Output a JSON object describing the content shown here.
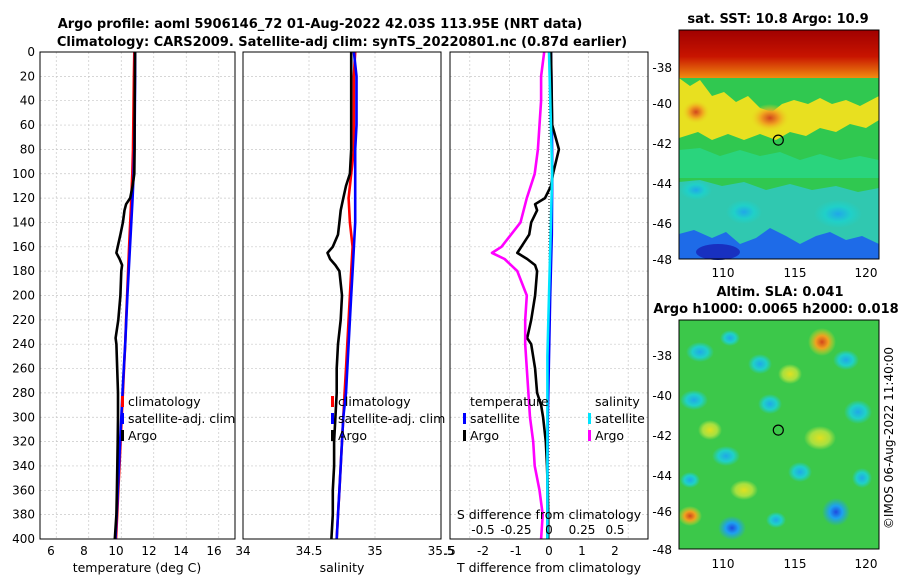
{
  "figure": {
    "title_line1": "Argo profile: aoml 5906146_72 01-Aug-2022 42.03S 113.95E (NRT data)",
    "title_line2": "Climatology: CARS2009. Satellite-adj clim: synTS_20220801.nc (0.87d earlier)",
    "credit": "©IMOS 06-Aug-2022 11:40:00"
  },
  "colors": {
    "climatology": "#ff0000",
    "satellite_clim": "#0000ff",
    "argo": "#000000",
    "salinity_satellite": "#00e5ff",
    "salinity_argo": "#ff00ff",
    "grid": "#c8c8c8"
  },
  "chart_data": [
    {
      "type": "line",
      "id": "temperature-panel",
      "xlabel": "temperature (deg C)",
      "ylabel": "",
      "xlim": [
        5,
        17
      ],
      "ylim": [
        400,
        0
      ],
      "xticks": [
        "6",
        "8",
        "10",
        "12",
        "14",
        "16"
      ],
      "yticks": [
        "0",
        "20",
        "40",
        "60",
        "80",
        "100",
        "120",
        "140",
        "160",
        "180",
        "200",
        "220",
        "240",
        "260",
        "280",
        "300",
        "320",
        "340",
        "360",
        "380",
        "400"
      ],
      "legend": [
        "climatology",
        "satellite-adj. clim",
        "Argo"
      ],
      "series": [
        {
          "name": "climatology",
          "color": "#ff0000",
          "depth": [
            0,
            20,
            40,
            60,
            80,
            100,
            120,
            140,
            160,
            180,
            200,
            220,
            240,
            260,
            280,
            300,
            320,
            340,
            360,
            380,
            400
          ],
          "values": [
            10.8,
            10.78,
            10.76,
            10.74,
            10.72,
            10.68,
            10.62,
            10.55,
            10.48,
            10.42,
            10.36,
            10.3,
            10.24,
            10.17,
            10.1,
            10.03,
            9.96,
            9.89,
            9.82,
            9.75,
            9.68
          ]
        },
        {
          "name": "satellite-adj. clim",
          "color": "#0000ff",
          "depth": [
            0,
            20,
            40,
            60,
            80,
            100,
            120,
            140,
            160,
            180,
            200,
            220,
            240,
            260,
            280,
            300,
            320,
            340,
            360,
            380,
            400
          ],
          "values": [
            10.85,
            10.85,
            10.84,
            10.83,
            10.8,
            10.76,
            10.7,
            10.62,
            10.54,
            10.46,
            10.38,
            10.31,
            10.24,
            10.16,
            10.08,
            10.0,
            9.93,
            9.86,
            9.79,
            9.72,
            9.64
          ]
        },
        {
          "name": "Argo",
          "color": "#000000",
          "depth": [
            0,
            20,
            40,
            60,
            80,
            100,
            110,
            120,
            125,
            130,
            140,
            150,
            160,
            165,
            170,
            175,
            180,
            200,
            220,
            235,
            240,
            260,
            280,
            300,
            320,
            340,
            360,
            380,
            400
          ],
          "values": [
            10.85,
            10.84,
            10.83,
            10.82,
            10.82,
            10.8,
            10.7,
            10.55,
            10.3,
            10.2,
            10.1,
            9.95,
            9.78,
            9.7,
            9.9,
            10.05,
            10.0,
            9.95,
            9.82,
            9.65,
            9.7,
            9.75,
            9.8,
            9.8,
            9.78,
            9.76,
            9.73,
            9.7,
            9.6
          ]
        }
      ]
    },
    {
      "type": "line",
      "id": "salinity-panel",
      "xlabel": "salinity",
      "xlim": [
        34,
        35.5
      ],
      "ylim": [
        400,
        0
      ],
      "xticks": [
        "34",
        "34.5",
        "35",
        "35.5"
      ],
      "legend": [
        "climatology",
        "satellite-adj. clim",
        "Argo"
      ],
      "series": [
        {
          "name": "climatology",
          "color": "#ff0000",
          "depth": [
            0,
            20,
            40,
            60,
            80,
            100,
            120,
            140,
            160,
            180,
            200,
            220,
            240,
            260,
            280,
            300,
            320,
            340,
            360,
            380,
            400
          ],
          "values": [
            34.85,
            34.84,
            34.84,
            34.84,
            34.84,
            34.82,
            34.8,
            34.81,
            34.83,
            34.82,
            34.81,
            34.8,
            34.79,
            34.78,
            34.77,
            34.76,
            34.75,
            34.74,
            34.73,
            34.72,
            34.71
          ]
        },
        {
          "name": "satellite-adj. clim",
          "color": "#0000ff",
          "depth": [
            0,
            20,
            40,
            60,
            80,
            100,
            120,
            140,
            160,
            180,
            200,
            220,
            240,
            260,
            280,
            300,
            320,
            340,
            360,
            380,
            400
          ],
          "values": [
            34.84,
            34.86,
            34.86,
            34.86,
            34.85,
            34.85,
            34.85,
            34.85,
            34.84,
            34.83,
            34.82,
            34.81,
            34.8,
            34.79,
            34.78,
            34.76,
            34.75,
            34.74,
            34.73,
            34.72,
            34.71
          ]
        },
        {
          "name": "Argo",
          "color": "#000000",
          "depth": [
            0,
            20,
            40,
            60,
            80,
            100,
            110,
            120,
            130,
            140,
            150,
            160,
            165,
            170,
            175,
            180,
            200,
            220,
            240,
            260,
            280,
            300,
            320,
            340,
            360,
            380,
            400
          ],
          "values": [
            34.82,
            34.82,
            34.82,
            34.82,
            34.82,
            34.81,
            34.78,
            34.76,
            34.74,
            34.73,
            34.72,
            34.68,
            34.64,
            34.66,
            34.7,
            34.73,
            34.75,
            34.74,
            34.72,
            34.71,
            34.71,
            34.7,
            34.69,
            34.69,
            34.68,
            34.68,
            34.67
          ]
        }
      ]
    },
    {
      "type": "line",
      "id": "difference-panel",
      "xlabel": "T difference from climatology",
      "x2label": "S difference from climatology",
      "xlim": [
        -2.5,
        2.5
      ],
      "ylim": [
        400,
        0
      ],
      "xticks": [
        "-2",
        "-1",
        "0",
        "1",
        "2"
      ],
      "x2ticks": [
        "-0.5",
        "-0.25",
        "0",
        "0.25",
        "0.5"
      ],
      "legend_temperature_title": "temperature",
      "legend_salinity_title": "salinity",
      "legend_temperature": [
        "satellite",
        "Argo"
      ],
      "legend_salinity": [
        "satellite",
        "Argo"
      ],
      "series": [
        {
          "name": "T satellite",
          "color": "#0000ff",
          "depth": [
            0,
            50,
            100,
            150,
            200,
            250,
            300,
            350,
            400
          ],
          "values": [
            0.05,
            0.07,
            0.08,
            0.07,
            0.03,
            0.0,
            -0.03,
            -0.04,
            -0.04
          ]
        },
        {
          "name": "T Argo",
          "color": "#000000",
          "depth": [
            0,
            20,
            40,
            60,
            80,
            100,
            110,
            120,
            125,
            130,
            140,
            150,
            160,
            165,
            170,
            175,
            180,
            200,
            220,
            235,
            240,
            260,
            280,
            290,
            300,
            320,
            340,
            360,
            380,
            400
          ],
          "values": [
            0.05,
            0.06,
            0.07,
            0.08,
            0.25,
            0.1,
            0.05,
            -0.1,
            -0.35,
            -0.3,
            -0.45,
            -0.5,
            -0.7,
            -0.8,
            -0.55,
            -0.35,
            -0.3,
            -0.35,
            -0.45,
            -0.55,
            -0.45,
            -0.35,
            -0.3,
            -0.2,
            -0.15,
            -0.08,
            -0.05,
            -0.03,
            -0.02,
            -0.02
          ]
        },
        {
          "name": "S satellite",
          "color": "#00e5ff",
          "depth": [
            0,
            50,
            100,
            150,
            200,
            250,
            300,
            350,
            400
          ],
          "values": [
            0.0,
            0.01,
            0.02,
            0.01,
            0.0,
            -0.01,
            -0.01,
            -0.01,
            -0.01
          ]
        },
        {
          "name": "S Argo",
          "color": "#ff00ff",
          "depth": [
            0,
            20,
            40,
            60,
            80,
            100,
            120,
            140,
            160,
            165,
            170,
            180,
            200,
            220,
            240,
            260,
            280,
            300,
            320,
            340,
            360,
            380,
            400
          ],
          "values": [
            -0.03,
            -0.05,
            -0.05,
            -0.06,
            -0.07,
            -0.09,
            -0.14,
            -0.18,
            -0.3,
            -0.36,
            -0.28,
            -0.2,
            -0.14,
            -0.15,
            -0.15,
            -0.14,
            -0.13,
            -0.12,
            -0.1,
            -0.09,
            -0.06,
            -0.04,
            -0.05
          ]
        }
      ]
    },
    {
      "type": "heatmap",
      "id": "sst-map",
      "title": "sat. SST: 10.8 Argo: 10.9",
      "xticks": [
        "110",
        "115",
        "120"
      ],
      "yticks": [
        "-38",
        "-40",
        "-42",
        "-44",
        "-46",
        "-48"
      ],
      "xlim": [
        107,
        121
      ],
      "ylim": [
        -48,
        -36.5
      ],
      "marker": {
        "lon": 113.95,
        "lat": -42.03
      }
    },
    {
      "type": "heatmap",
      "id": "sla-map",
      "title": "Altim. SLA: 0.041",
      "subtitle": "Argo h1000: 0.0065 h2000: 0.018",
      "xticks": [
        "110",
        "115",
        "120"
      ],
      "yticks": [
        "-38",
        "-40",
        "-42",
        "-44",
        "-46",
        "-48"
      ],
      "xlim": [
        107,
        121
      ],
      "ylim": [
        -48,
        -36.5
      ],
      "marker": {
        "lon": 113.95,
        "lat": -42.03
      }
    }
  ]
}
